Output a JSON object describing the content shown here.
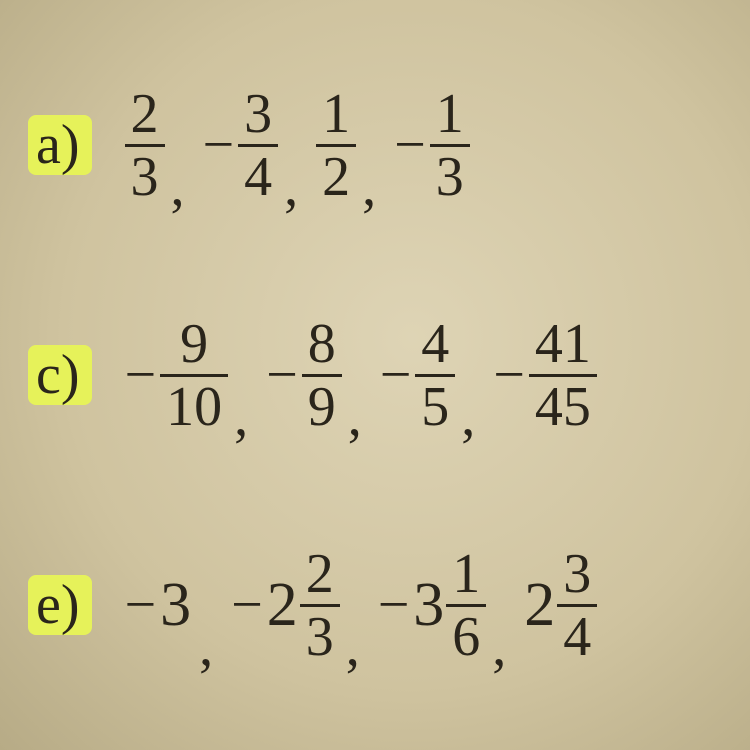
{
  "background_color": "#d4c9a8",
  "text_color": "#2a251b",
  "highlight_color": "#e6f25a",
  "label_fontsize": 56,
  "fraction_fontsize": 56,
  "bar_thickness": 3,
  "problems": [
    {
      "label": "a)",
      "highlighted": true,
      "terms": [
        {
          "sign": "",
          "whole": "",
          "num": "2",
          "den": "3"
        },
        {
          "sign": "−",
          "whole": "",
          "num": "3",
          "den": "4"
        },
        {
          "sign": "",
          "whole": "",
          "num": "1",
          "den": "2"
        },
        {
          "sign": "−",
          "whole": "",
          "num": "1",
          "den": "3"
        }
      ]
    },
    {
      "label": "c)",
      "highlighted": true,
      "terms": [
        {
          "sign": "−",
          "whole": "",
          "num": "9",
          "den": "10"
        },
        {
          "sign": "−",
          "whole": "",
          "num": "8",
          "den": "9"
        },
        {
          "sign": "−",
          "whole": "",
          "num": "4",
          "den": "5"
        },
        {
          "sign": "−",
          "whole": "",
          "num": "41",
          "den": "45"
        }
      ]
    },
    {
      "label": "e)",
      "highlighted": true,
      "terms": [
        {
          "sign": "−",
          "whole": "3",
          "num": "",
          "den": ""
        },
        {
          "sign": "−",
          "whole": "2",
          "num": "2",
          "den": "3"
        },
        {
          "sign": "−",
          "whole": "3",
          "num": "1",
          "den": "6"
        },
        {
          "sign": "",
          "whole": "2",
          "num": "3",
          "den": "4"
        }
      ]
    }
  ]
}
